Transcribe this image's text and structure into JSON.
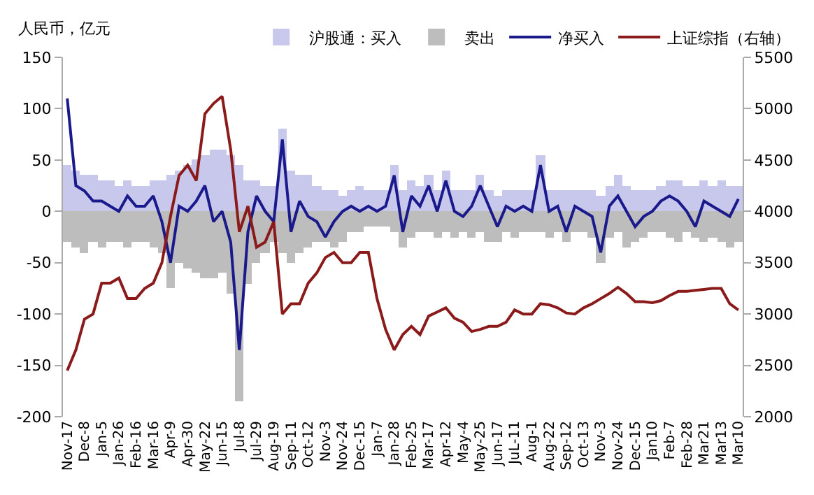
{
  "chart_data": {
    "type": "bar",
    "ylabel": "人民币，亿元",
    "legend": "top",
    "stacked": true,
    "categories": [
      "Nov-17",
      null,
      "Dec-8",
      null,
      "Jan-5",
      null,
      "Jan-26",
      null,
      "Feb-16",
      null,
      "Mar-16",
      null,
      "Apr-9",
      null,
      "Apr-30",
      null,
      "May-22",
      null,
      "Jun-15",
      null,
      "Jul-8",
      null,
      "Jul-29",
      null,
      "Aug-19",
      null,
      "Sep-11",
      null,
      "Oct-12",
      null,
      "Nov-3",
      null,
      "Nov-24",
      null,
      "Dec-15",
      null,
      "Jan-7",
      null,
      "Jan-28",
      null,
      "Feb-25",
      null,
      "Mar-17",
      null,
      "Apr-12",
      null,
      "May-4",
      null,
      "May-25",
      null,
      "Jun-17",
      null,
      "JuL-11",
      null,
      "Aug-1",
      null,
      "Aug-22",
      null,
      "Sep-12",
      null,
      "Oct-13",
      null,
      "Nov-3",
      null,
      "Nov-24",
      null,
      "Dec-15",
      null,
      "Jan10",
      null,
      "Feb-7",
      null,
      "Feb-28",
      null,
      "Mar21",
      null,
      "Mar13",
      null,
      "Mar10"
    ],
    "ylim": [
      -200,
      150
    ],
    "yticks": [
      -200,
      -150,
      -100,
      -50,
      0,
      50,
      100,
      150
    ],
    "y2lim": [
      2000,
      5500
    ],
    "y2ticks": [
      2000,
      2500,
      3000,
      3500,
      4000,
      4500,
      5000,
      5500
    ],
    "series": [
      {
        "name": "沪股通：买入",
        "color": "#c8c8ec",
        "values": [
          45,
          40,
          35,
          35,
          30,
          30,
          25,
          30,
          25,
          25,
          30,
          30,
          35,
          40,
          45,
          50,
          55,
          60,
          60,
          55,
          45,
          30,
          30,
          25,
          25,
          80,
          40,
          35,
          35,
          25,
          20,
          20,
          15,
          20,
          25,
          20,
          20,
          20,
          45,
          20,
          30,
          25,
          35,
          20,
          40,
          20,
          20,
          20,
          35,
          20,
          15,
          20,
          20,
          20,
          20,
          55,
          20,
          20,
          20,
          20,
          20,
          20,
          15,
          25,
          35,
          25,
          20,
          20,
          20,
          25,
          30,
          30,
          25,
          25,
          30,
          25,
          30,
          25,
          25
        ]
      },
      {
        "name": "卖出",
        "color": "#bdbdbd",
        "values": [
          -30,
          -35,
          -40,
          -30,
          -35,
          -30,
          -30,
          -35,
          -30,
          -30,
          -35,
          -40,
          -75,
          -50,
          -55,
          -60,
          -65,
          -65,
          -60,
          -80,
          -185,
          -70,
          -50,
          -40,
          -30,
          -40,
          -50,
          -40,
          -35,
          -30,
          -30,
          -35,
          -30,
          -20,
          -20,
          -15,
          -15,
          -15,
          -20,
          -35,
          -25,
          -20,
          -20,
          -25,
          -20,
          -25,
          -20,
          -25,
          -20,
          -30,
          -30,
          -20,
          -25,
          -20,
          -20,
          -20,
          -25,
          -20,
          -30,
          -20,
          -20,
          -25,
          -50,
          -25,
          -20,
          -35,
          -30,
          -25,
          -20,
          -20,
          -25,
          -30,
          -20,
          -25,
          -30,
          -25,
          -30,
          -35,
          -30
        ]
      },
      {
        "name": "净买入",
        "type": "line",
        "color": "#1a1a8c",
        "values": [
          110,
          25,
          20,
          10,
          10,
          5,
          0,
          15,
          5,
          5,
          15,
          -10,
          -50,
          5,
          0,
          10,
          25,
          -10,
          0,
          -30,
          -135,
          -20,
          15,
          0,
          -10,
          70,
          -20,
          10,
          -5,
          -10,
          -25,
          -10,
          0,
          5,
          0,
          5,
          0,
          5,
          35,
          -20,
          15,
          5,
          25,
          0,
          30,
          0,
          -5,
          5,
          25,
          5,
          -15,
          5,
          0,
          5,
          0,
          45,
          0,
          5,
          -20,
          5,
          0,
          -5,
          -40,
          5,
          15,
          0,
          -15,
          -5,
          0,
          10,
          15,
          10,
          0,
          -15,
          10,
          5,
          0,
          -5,
          12
        ]
      },
      {
        "name": "上证综指（右轴）",
        "type": "line",
        "axis": "y2",
        "color": "#8b1a1a",
        "values": [
          2450,
          2650,
          2950,
          3000,
          3300,
          3300,
          3350,
          3150,
          3150,
          3250,
          3300,
          3500,
          3950,
          4350,
          4450,
          4300,
          4950,
          5050,
          5120,
          4600,
          3800,
          4050,
          3650,
          3700,
          3900,
          3000,
          3100,
          3100,
          3300,
          3400,
          3550,
          3600,
          3500,
          3500,
          3600,
          3600,
          3150,
          2850,
          2650,
          2800,
          2880,
          2800,
          2980,
          3020,
          3060,
          2960,
          2920,
          2830,
          2850,
          2880,
          2880,
          2920,
          3040,
          3000,
          3000,
          3100,
          3090,
          3060,
          3010,
          3000,
          3060,
          3100,
          3150,
          3200,
          3260,
          3200,
          3120,
          3120,
          3110,
          3130,
          3180,
          3220,
          3220,
          3230,
          3240,
          3250,
          3250,
          3100,
          3040
        ]
      }
    ]
  }
}
